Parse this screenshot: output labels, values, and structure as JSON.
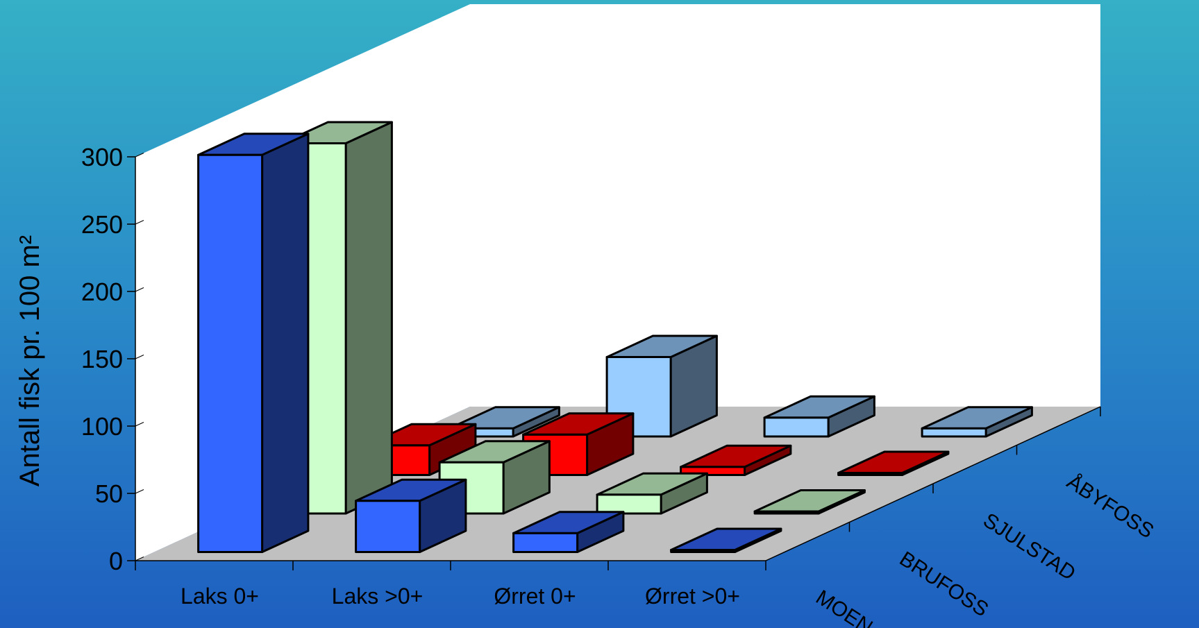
{
  "chart_data": {
    "type": "bar",
    "title": "",
    "xlabel": "",
    "ylabel": "Antall fisk pr. 100 m²",
    "ylim": [
      0,
      300
    ],
    "yticks": [
      "0",
      "50",
      "100",
      "150",
      "200",
      "250",
      "300"
    ],
    "categories": [
      "Laks 0+",
      "Laks >0+",
      "Ørret 0+",
      "Ørret >0+"
    ],
    "series": [
      {
        "name": "MOEN",
        "values": [
          295,
          38,
          14,
          1
        ],
        "color": "#3366ff"
      },
      {
        "name": "BRUFOSS",
        "values": [
          275,
          38,
          14,
          1
        ],
        "color": "#ccffcc"
      },
      {
        "name": "SJULSTAD",
        "values": [
          22,
          30,
          6,
          1
        ],
        "color": "#ff0000"
      },
      {
        "name": "ÅBYFOSS",
        "values": [
          6,
          59,
          14,
          6
        ],
        "color": "#99ccff"
      }
    ],
    "grid": false,
    "legend": "none"
  }
}
